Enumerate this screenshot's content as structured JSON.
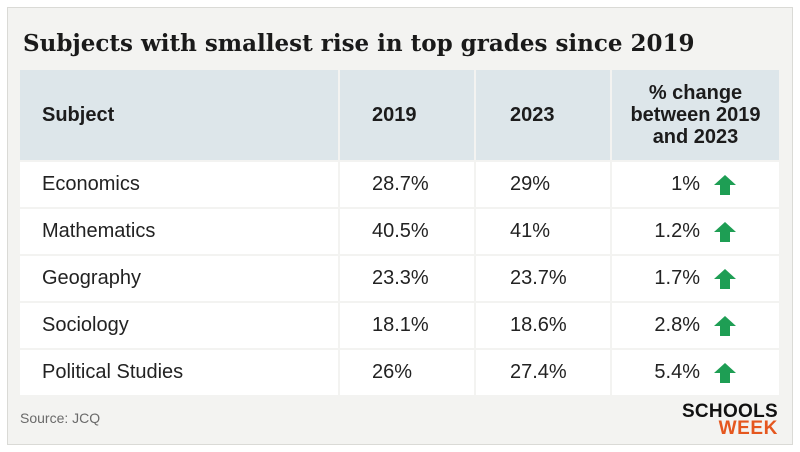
{
  "title": "Subjects with smallest rise in top grades since 2019",
  "source": "Source: JCQ",
  "logo": {
    "line1": "SCHOOLS",
    "line2": "WEEK"
  },
  "colors": {
    "header_bg": "#dde6ea",
    "arrow": "#1e9e54",
    "logo_accent": "#e5571f"
  },
  "chart_data": {
    "type": "table",
    "title": "Subjects with smallest rise in top grades since 2019",
    "columns": [
      "Subject",
      "2019",
      "2023",
      "% change between 2019 and 2023"
    ],
    "rows": [
      {
        "subject": "Economics",
        "y2019": "28.7%",
        "y2023": "29%",
        "change": "1%",
        "trend": "up-arrow-icon"
      },
      {
        "subject": "Mathematics",
        "y2019": "40.5%",
        "y2023": "41%",
        "change": "1.2%",
        "trend": "up-arrow-icon"
      },
      {
        "subject": "Geography",
        "y2019": "23.3%",
        "y2023": "23.7%",
        "change": "1.7%",
        "trend": "up-arrow-icon"
      },
      {
        "subject": "Sociology",
        "y2019": "18.1%",
        "y2023": "18.6%",
        "change": "2.8%",
        "trend": "up-arrow-icon"
      },
      {
        "subject": "Political Studies",
        "y2019": "26%",
        "y2023": "27.4%",
        "change": "5.4%",
        "trend": "up-arrow-icon"
      }
    ]
  }
}
